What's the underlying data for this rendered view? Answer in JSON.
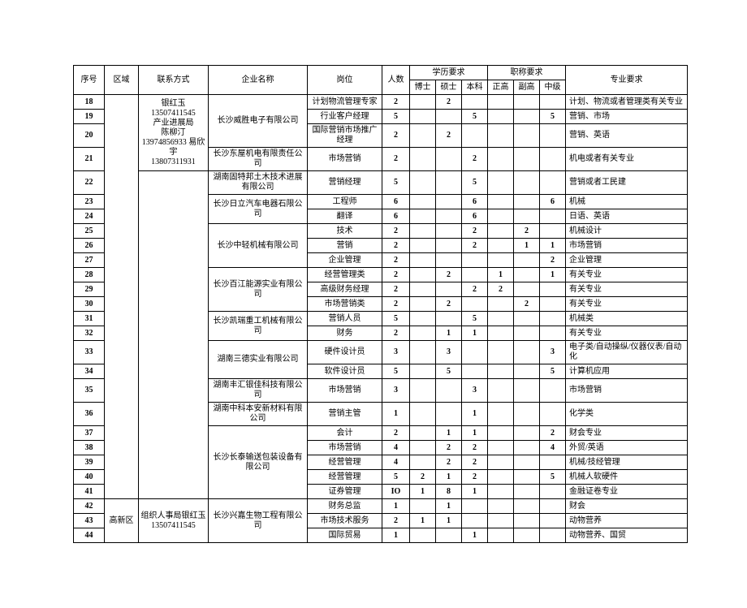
{
  "headers": {
    "seq": "序号",
    "region": "区域",
    "contact": "联系方式",
    "company": "企业名称",
    "position": "岗位",
    "count": "人数",
    "education": "学历要求",
    "doctor": "博士",
    "master": "硕士",
    "bachelor": "本科",
    "rank": "职称要求",
    "senior": "正高",
    "associate": "副高",
    "mid": "中级",
    "major": "专业要求"
  },
  "region2": "高新区",
  "contact1": "银红玉 13507411545\n产业进展局\n陈柳汀\n13974856933 易欣宇\n13807311931",
  "contact2": "组织人事局银红玉\n13507411545",
  "rows": [
    {
      "seq": "18",
      "company_span": 3,
      "company": "长沙威胜电子有限公司",
      "position": "计划物流管理专家",
      "count": "2",
      "doctor": "",
      "master": "2",
      "bachelor": "",
      "senior": "",
      "associate": "",
      "mid": "",
      "major": "计划、物流或者管理类有关专业"
    },
    {
      "seq": "19",
      "position": "行业客户经理",
      "count": "5",
      "doctor": "",
      "master": "",
      "bachelor": "5",
      "senior": "",
      "associate": "",
      "mid": "5",
      "major": "营销、市场"
    },
    {
      "seq": "20",
      "position": "国际营销市场推广经理",
      "count": "2",
      "doctor": "",
      "master": "2",
      "bachelor": "",
      "senior": "",
      "associate": "",
      "mid": "",
      "major": "营销、英语"
    },
    {
      "seq": "21",
      "company_span": 1,
      "company": "长沙东屋机电有限责任公司",
      "position": "市场营销",
      "count": "2",
      "doctor": "",
      "master": "",
      "bachelor": "2",
      "senior": "",
      "associate": "",
      "mid": "",
      "major": "机电或者有关专业"
    },
    {
      "seq": "22",
      "company_span": 1,
      "company": "湖南固特邦土木技术进展有限公司",
      "position": "营销经理",
      "count": "5",
      "doctor": "",
      "master": "",
      "bachelor": "5",
      "senior": "",
      "associate": "",
      "mid": "",
      "major": "营销或者工民建"
    },
    {
      "seq": "23",
      "company_span": 2,
      "company": "长沙日立汽车电器石限公司",
      "position": "工程师",
      "count": "6",
      "doctor": "",
      "master": "",
      "bachelor": "6",
      "senior": "",
      "associate": "",
      "mid": "6",
      "major": "机械"
    },
    {
      "seq": "24",
      "position": "翻译",
      "count": "6",
      "doctor": "",
      "master": "",
      "bachelor": "6",
      "senior": "",
      "associate": "",
      "mid": "",
      "major": "日语、英语"
    },
    {
      "seq": "25",
      "company_span": 3,
      "company": "长沙中轻机械有限公司",
      "position": "技术",
      "count": "2",
      "doctor": "",
      "master": "",
      "bachelor": "2",
      "senior": "",
      "associate": "2",
      "mid": "",
      "major": "机械设计"
    },
    {
      "seq": "26",
      "position": "营销",
      "count": "2",
      "doctor": "",
      "master": "",
      "bachelor": "2",
      "senior": "",
      "associate": "1",
      "mid": "1",
      "major": "市场营销"
    },
    {
      "seq": "27",
      "position": "企业管理",
      "count": "2",
      "doctor": "",
      "master": "",
      "bachelor": "",
      "senior": "",
      "associate": "",
      "mid": "2",
      "major": "企业管理"
    },
    {
      "seq": "28",
      "company_span": 3,
      "company": "长沙百江能源实业有限公司",
      "position": "经营管理类",
      "count": "2",
      "doctor": "",
      "master": "2",
      "bachelor": "",
      "senior": "1",
      "associate": "",
      "mid": "1",
      "major": "有关专业"
    },
    {
      "seq": "29",
      "position": "高级财务经理",
      "count": "2",
      "doctor": "",
      "master": "",
      "bachelor": "2",
      "senior": "2",
      "associate": "",
      "mid": "",
      "major": "有关专业"
    },
    {
      "seq": "30",
      "position": "市场营销类",
      "count": "2",
      "doctor": "",
      "master": "2",
      "bachelor": "",
      "senior": "",
      "associate": "2",
      "mid": "",
      "major": "有关专业"
    },
    {
      "seq": "31",
      "company_span": 2,
      "company": "长沙凯瑞重工机械有限公司",
      "position": "营销人员",
      "count": "5",
      "doctor": "",
      "master": "",
      "bachelor": "5",
      "senior": "",
      "associate": "",
      "mid": "",
      "major": "机械类"
    },
    {
      "seq": "32",
      "position": "财务",
      "count": "2",
      "doctor": "",
      "master": "1",
      "bachelor": "1",
      "senior": "",
      "associate": "",
      "mid": "",
      "major": "有关专业"
    },
    {
      "seq": "33",
      "company_span": 2,
      "company": "湖南三德实业有限公司",
      "position": "硬件设计员",
      "count": "3",
      "doctor": "",
      "master": "3",
      "bachelor": "",
      "senior": "",
      "associate": "",
      "mid": "3",
      "major": "电子类/自动操纵/仪器仪表/自动化"
    },
    {
      "seq": "34",
      "position": "软件设计员",
      "count": "5",
      "doctor": "",
      "master": "5",
      "bachelor": "",
      "senior": "",
      "associate": "",
      "mid": "5",
      "major": "计算机应用"
    },
    {
      "seq": "35",
      "company_span": 1,
      "company": "湖南丰汇银佳科技有限公司",
      "position": "市场营销",
      "count": "3",
      "doctor": "",
      "master": "",
      "bachelor": "3",
      "senior": "",
      "associate": "",
      "mid": "",
      "major": "市场营销"
    },
    {
      "seq": "36",
      "company_span": 1,
      "company": "湖南中科本安新材料有限公司",
      "position": "营销主管",
      "count": "1",
      "doctor": "",
      "master": "",
      "bachelor": "1",
      "senior": "",
      "associate": "",
      "mid": "",
      "major": "化学类"
    },
    {
      "seq": "37",
      "company_span": 5,
      "company": "长沙长泰输送包装设备有限公司",
      "position": "会计",
      "count": "2",
      "doctor": "",
      "master": "1",
      "bachelor": "1",
      "senior": "",
      "associate": "",
      "mid": "2",
      "major": "财会专业"
    },
    {
      "seq": "38",
      "position": "市场营销",
      "count": "4",
      "doctor": "",
      "master": "2",
      "bachelor": "2",
      "senior": "",
      "associate": "",
      "mid": "4",
      "major": "外贸/英语"
    },
    {
      "seq": "39",
      "position": "经营管理",
      "count": "4",
      "doctor": "",
      "master": "2",
      "bachelor": "2",
      "senior": "",
      "associate": "",
      "mid": "",
      "major": "机械/技经管理"
    },
    {
      "seq": "40",
      "position": "经营管理",
      "count": "5",
      "doctor": "2",
      "master": "1",
      "bachelor": "2",
      "senior": "",
      "associate": "",
      "mid": "5",
      "major": "机械人软硬件"
    },
    {
      "seq": "41",
      "position": "证券管理",
      "count": "IO",
      "doctor": "1",
      "master": "8",
      "bachelor": "1",
      "senior": "",
      "associate": "",
      "mid": "",
      "major": "金融证卷专业"
    },
    {
      "seq": "42",
      "company_span": 3,
      "company": "长沙兴嘉生物工程有限公司",
      "position": "财务总监",
      "count": "1",
      "doctor": "",
      "master": "1",
      "bachelor": "",
      "senior": "",
      "associate": "",
      "mid": "",
      "major": "财会"
    },
    {
      "seq": "43",
      "position": "市场技术服务",
      "count": "2",
      "doctor": "1",
      "master": "1",
      "bachelor": "",
      "senior": "",
      "associate": "",
      "mid": "",
      "major": "动物营养"
    },
    {
      "seq": "44",
      "position": "国际贸易",
      "count": "1",
      "doctor": "",
      "master": "",
      "bachelor": "1",
      "senior": "",
      "associate": "",
      "mid": "",
      "major": "动物营养、国贸"
    }
  ],
  "styling": {
    "font_family": "SimSun",
    "font_size_pt": 10,
    "border_color": "#000000",
    "background_color": "#ffffff",
    "text_color": "#000000"
  }
}
